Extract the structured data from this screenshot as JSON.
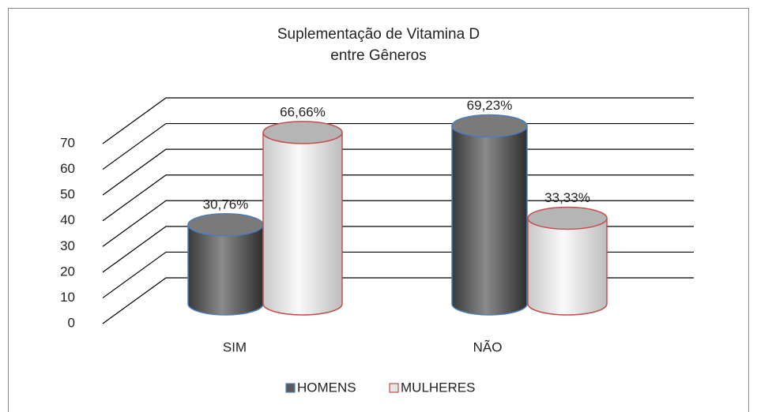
{
  "chart_data": {
    "type": "bar3d_cylinder",
    "title": "Suplementação de Vitamina D\nentre Gêneros",
    "categories": [
      "SIM",
      "NÃO"
    ],
    "series": [
      {
        "name": "HOMENS",
        "color": "#5a5a5a",
        "border_color": "#4a7ebb",
        "values": [
          30.76,
          69.23
        ],
        "value_labels": [
          "30,76%",
          "69,23%"
        ]
      },
      {
        "name": "MULHERES",
        "color": "#e6e6e6",
        "border_color": "#c0504d",
        "values": [
          66.66,
          33.33
        ],
        "value_labels": [
          "66,66%",
          "33,33%"
        ]
      }
    ],
    "ylim": [
      0,
      70
    ],
    "yticks": [
      0,
      10,
      20,
      30,
      40,
      50,
      60,
      70
    ],
    "grid": true,
    "legend": "bottom"
  }
}
